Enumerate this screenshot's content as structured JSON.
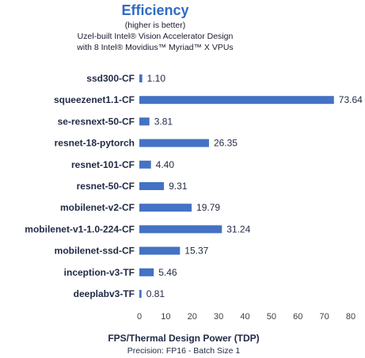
{
  "chart_data": {
    "type": "bar",
    "orientation": "horizontal",
    "title": "Efficiency",
    "subtitle_lines": [
      "(higher is better)",
      "Uzel-built Intel® Vision Accelerator Design",
      "with 8 Intel® Movidius™ Myriad™ X VPUs"
    ],
    "categories": [
      "ssd300-CF",
      "squeezenet1.1-CF",
      "se-resnext-50-CF",
      "resnet-18-pytorch",
      "resnet-101-CF",
      "resnet-50-CF",
      "mobilenet-v2-CF",
      "mobilenet-v1-1.0-224-CF",
      "mobilenet-ssd-CF",
      "inception-v3-TF",
      "deeplabv3-TF"
    ],
    "values": [
      1.1,
      73.64,
      3.81,
      26.35,
      4.4,
      9.31,
      19.79,
      31.24,
      15.37,
      5.46,
      0.81
    ],
    "value_labels": [
      "1.10",
      "73.64",
      "3.81",
      "26.35",
      "4.40",
      "9.31",
      "19.79",
      "31.24",
      "15.37",
      "5.46",
      "0.81"
    ],
    "xlabel": "FPS/Thermal Design Power (TDP)",
    "footnote": "Precision: FP16 - Batch Size 1",
    "xlim": [
      0,
      80
    ],
    "xticks": [
      "0",
      "10",
      "20",
      "30",
      "40",
      "50",
      "60",
      "70",
      "80"
    ],
    "grid": false,
    "legend": "none",
    "bar_color": "#4472c4"
  }
}
